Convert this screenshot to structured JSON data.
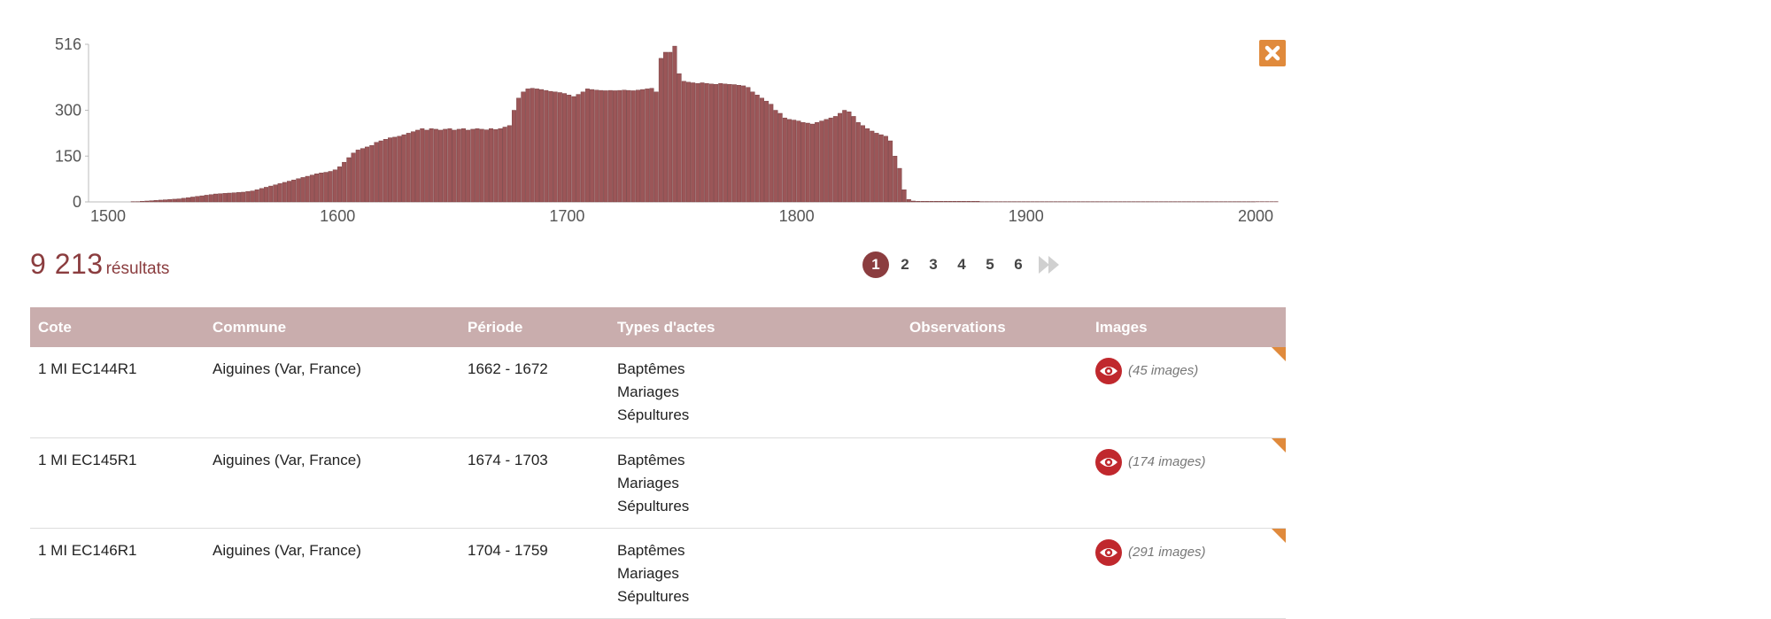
{
  "chart_data": {
    "type": "bar",
    "xlim": [
      1500,
      2000
    ],
    "ylim": [
      0,
      516
    ],
    "x_ticks": [
      "1500",
      "1600",
      "1700",
      "1800",
      "1900",
      "2000"
    ],
    "y_ticks": [
      "516",
      "300",
      "150",
      "0"
    ],
    "bar_color": "#9b5658",
    "bins_start": 1510,
    "bin_width": 2,
    "values": [
      1,
      1,
      2,
      3,
      4,
      5,
      6,
      7,
      8,
      9,
      10,
      12,
      14,
      16,
      18,
      20,
      22,
      24,
      26,
      27,
      28,
      29,
      30,
      31,
      32,
      34,
      36,
      40,
      44,
      48,
      52,
      56,
      60,
      64,
      68,
      72,
      76,
      80,
      84,
      88,
      92,
      95,
      97,
      100,
      105,
      115,
      130,
      145,
      160,
      170,
      175,
      180,
      185,
      195,
      200,
      205,
      210,
      212,
      215,
      220,
      225,
      230,
      235,
      240,
      235,
      240,
      238,
      235,
      238,
      240,
      235,
      238,
      240,
      235,
      238,
      240,
      238,
      236,
      240,
      237,
      240,
      245,
      250,
      300,
      340,
      360,
      370,
      372,
      370,
      368,
      365,
      362,
      360,
      358,
      355,
      350,
      345,
      352,
      360,
      370,
      368,
      366,
      365,
      364,
      365,
      364,
      365,
      366,
      365,
      364,
      366,
      368,
      370,
      372,
      360,
      470,
      490,
      490,
      510,
      420,
      395,
      392,
      390,
      388,
      390,
      388,
      386,
      385,
      388,
      386,
      385,
      384,
      382,
      380,
      375,
      360,
      350,
      340,
      330,
      320,
      300,
      290,
      275,
      270,
      268,
      265,
      260,
      258,
      255,
      260,
      265,
      270,
      275,
      280,
      290,
      300,
      295,
      280,
      260,
      250,
      240,
      232,
      225,
      220,
      215,
      200,
      150,
      110,
      40,
      8,
      3,
      2,
      2,
      2,
      2,
      2,
      2,
      2,
      2,
      2,
      2,
      2,
      2,
      2,
      2,
      1,
      1,
      1,
      1,
      1,
      1,
      1,
      1,
      1,
      1,
      1,
      1,
      1,
      1,
      1,
      1,
      1,
      1,
      1,
      1,
      1,
      1,
      1,
      1,
      1,
      1,
      1,
      1,
      1,
      1,
      1,
      1,
      1,
      1,
      1,
      1,
      1,
      1,
      1,
      1,
      1,
      1,
      1,
      1,
      1,
      1,
      1,
      1,
      1,
      1,
      1,
      1,
      1,
      1,
      1,
      1,
      1,
      1,
      1,
      1,
      1,
      1,
      1,
      1,
      1
    ]
  },
  "results": {
    "count": "9 213",
    "label": "résultats"
  },
  "pagination": {
    "pages": [
      "1",
      "2",
      "3",
      "4",
      "5",
      "6"
    ],
    "active": "1",
    "last_icon": "fast-forward-icon"
  },
  "table": {
    "headers": [
      "Cote",
      "Commune",
      "Période",
      "Types d'actes",
      "Observations",
      "Images"
    ],
    "rows": [
      {
        "cote": "1 MI EC144R1",
        "commune": "Aiguines (Var, France)",
        "periode": "1662 - 1672",
        "types": [
          "Baptêmes",
          "Mariages",
          "Sépultures"
        ],
        "observations": "",
        "images": "(45 images)"
      },
      {
        "cote": "1 MI EC145R1",
        "commune": "Aiguines (Var, France)",
        "periode": "1674 - 1703",
        "types": [
          "Baptêmes",
          "Mariages",
          "Sépultures"
        ],
        "observations": "",
        "images": "(174 images)"
      },
      {
        "cote": "1 MI EC146R1",
        "commune": "Aiguines (Var, France)",
        "periode": "1704 - 1759",
        "types": [
          "Baptêmes",
          "Mariages",
          "Sépultures"
        ],
        "observations": "",
        "images": "(291 images)"
      }
    ]
  },
  "icons": {
    "close": "close-icon",
    "view": "eye-icon"
  },
  "colors": {
    "accent": "#8b3d3f",
    "header_bg": "#c9adad",
    "close_bg": "#e08a3c",
    "eye_bg": "#c0282d"
  }
}
